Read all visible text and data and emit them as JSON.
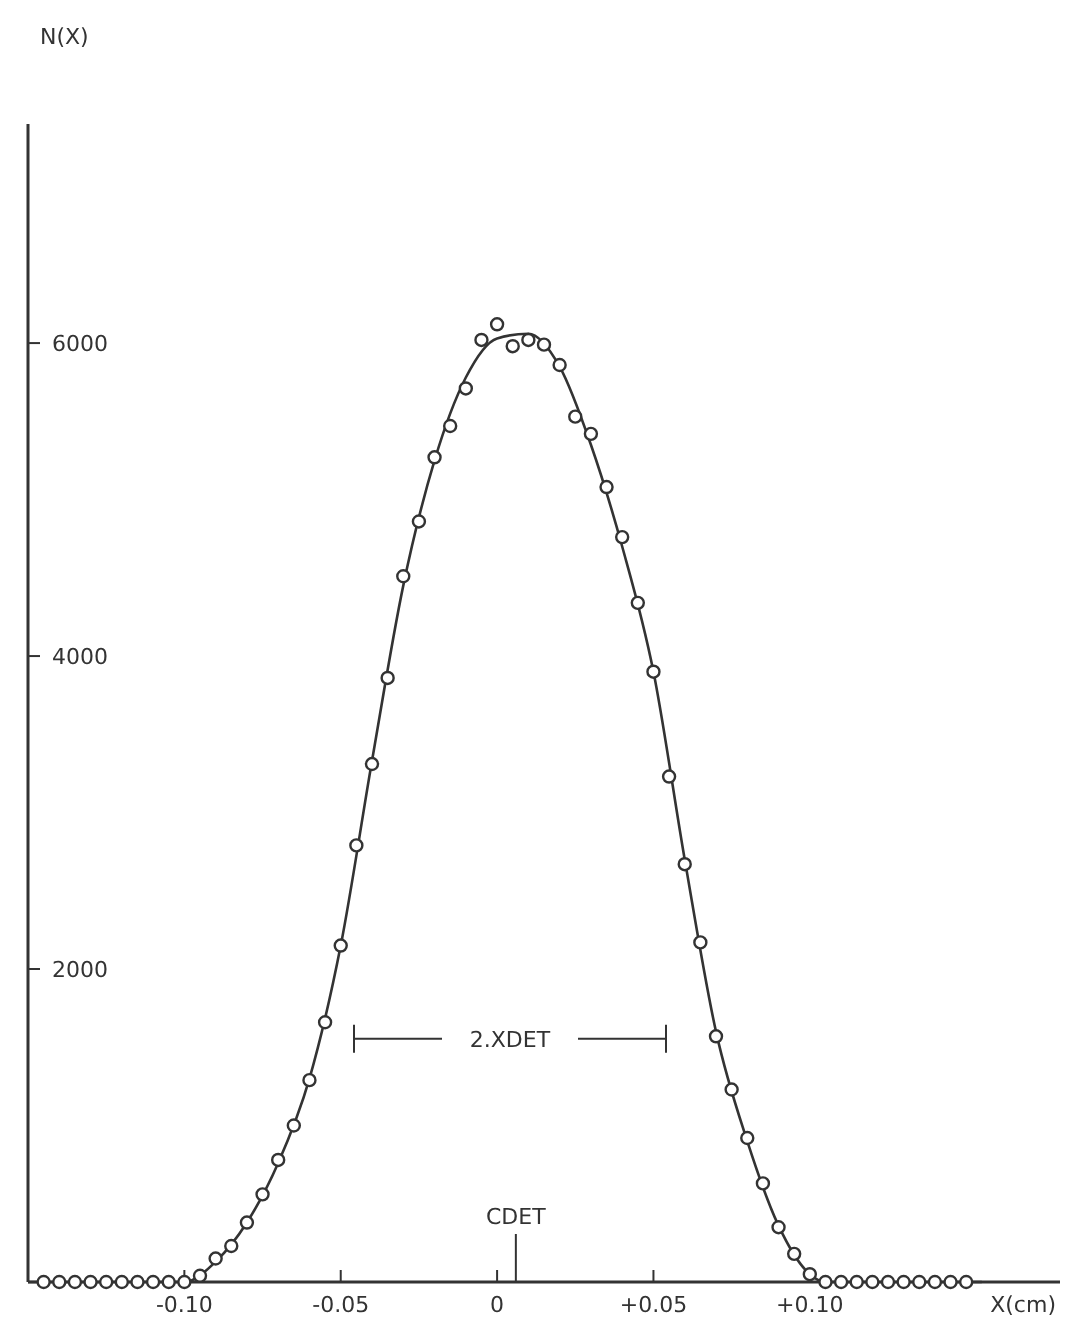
{
  "chart_data": {
    "type": "scatter",
    "xlabel": "X(cm)",
    "ylabel": "N(X)",
    "xlim": [
      -0.15,
      0.18
    ],
    "ylim": [
      0,
      7400
    ],
    "xticks": [
      {
        "value": -0.1,
        "label": "-0.10"
      },
      {
        "value": -0.05,
        "label": "-0.05"
      },
      0,
      {
        "value": 0.05,
        "label": "+0.05"
      },
      {
        "value": 0.1,
        "label": "+0.10"
      }
    ],
    "yticks": [
      2000,
      4000,
      6000
    ],
    "grid": false,
    "series": [
      {
        "marker": "circle",
        "color": "#333333",
        "x": [
          -0.145,
          -0.14,
          -0.135,
          -0.13,
          -0.125,
          -0.12,
          -0.115,
          -0.11,
          -0.105,
          -0.1,
          -0.095,
          -0.09,
          -0.085,
          -0.08,
          -0.075,
          -0.07,
          -0.065,
          -0.06,
          -0.055,
          -0.05,
          -0.045,
          -0.04,
          -0.035,
          -0.03,
          -0.025,
          -0.02,
          -0.015,
          -0.01,
          -0.005,
          0,
          0.005,
          0.01,
          0.015,
          0.02,
          0.025,
          0.03,
          0.035,
          0.04,
          0.045,
          0.05,
          0.055,
          0.06,
          0.065,
          0.07,
          0.075,
          0.08,
          0.085,
          0.09,
          0.095,
          0.1,
          0.105,
          0.11,
          0.115,
          0.12,
          0.125,
          0.13,
          0.135,
          0.14,
          0.145,
          0.15
        ],
        "values": [
          0,
          0,
          0,
          0,
          0,
          0,
          0,
          0,
          0,
          0,
          40,
          150,
          230,
          380,
          560,
          780,
          1000,
          1290,
          1660,
          2150,
          2790,
          3310,
          3860,
          4510,
          4860,
          5270,
          5470,
          5710,
          6020,
          6120,
          5980,
          6020,
          5990,
          5860,
          5530,
          5420,
          5080,
          4760,
          4340,
          3900,
          3230,
          2670,
          2170,
          1570,
          1230,
          920,
          630,
          350,
          180,
          50,
          0,
          0,
          0,
          0,
          0,
          0,
          0,
          0,
          0,
          0
        ]
      },
      {
        "type": "line",
        "line_style": "solid",
        "color": "#333333",
        "x": [
          -0.15,
          -0.1,
          -0.09,
          -0.08,
          -0.07,
          -0.06,
          -0.05,
          -0.04,
          -0.03,
          -0.02,
          -0.01,
          0,
          0.01,
          0.02,
          0.03,
          0.04,
          0.05,
          0.06,
          0.07,
          0.08,
          0.09,
          0.1,
          0.105,
          0.155
        ],
        "values": [
          0,
          0,
          130,
          380,
          760,
          1300,
          2150,
          3330,
          4450,
          5250,
          5780,
          6030,
          6060,
          5850,
          5350,
          4700,
          3900,
          2700,
          1600,
          900,
          360,
          50,
          0,
          0
        ]
      }
    ],
    "ref_lines": [
      {
        "axis": "x",
        "value": 0.006,
        "label": "CDET"
      }
    ],
    "annotations": [
      "2.XDET"
    ]
  }
}
